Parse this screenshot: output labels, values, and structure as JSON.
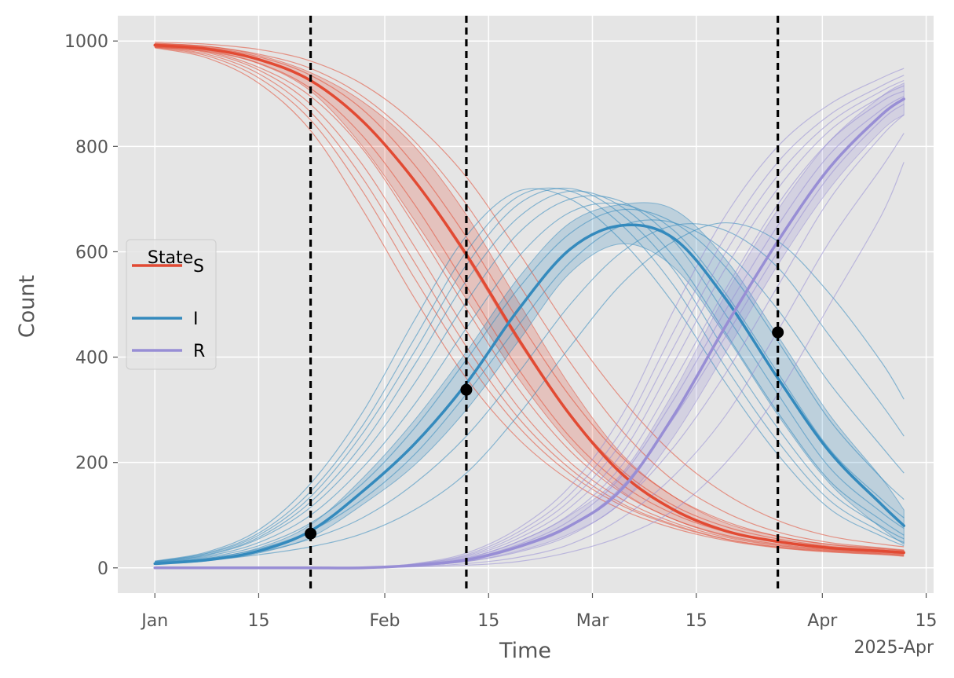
{
  "chart_data": {
    "type": "line",
    "title": "",
    "xlabel": "Time",
    "ylabel": "Count",
    "x_offset_label": "2025-Apr",
    "x_axis": {
      "type": "date",
      "range": [
        "2024-12-27",
        "2025-04-16"
      ],
      "ticks": [
        {
          "date": "2025-01-01",
          "label": "Jan"
        },
        {
          "date": "2025-01-15",
          "label": "15"
        },
        {
          "date": "2025-02-01",
          "label": "Feb"
        },
        {
          "date": "2025-02-15",
          "label": "15"
        },
        {
          "date": "2025-03-01",
          "label": "Mar"
        },
        {
          "date": "2025-03-15",
          "label": "15"
        },
        {
          "date": "2025-04-01",
          "label": "Apr"
        },
        {
          "date": "2025-04-15",
          "label": "15"
        }
      ]
    },
    "y_axis": {
      "range": [
        -48,
        1048
      ],
      "ticks": [
        0,
        200,
        400,
        600,
        800,
        1000
      ]
    },
    "grid": true,
    "legend": {
      "title": "State",
      "placement": "center-left",
      "entries": [
        "S",
        "I",
        "R"
      ]
    },
    "colors": {
      "S": "#E24A33",
      "I": "#348ABD",
      "R": "#988ED5",
      "marker": "#000000",
      "vline": "#000000",
      "background": "#E5E5E5",
      "grid": "#FFFFFF"
    },
    "dates": [
      "2025-01-01",
      "2025-01-08",
      "2025-01-15",
      "2025-01-22",
      "2025-01-29",
      "2025-02-05",
      "2025-02-12",
      "2025-02-19",
      "2025-02-26",
      "2025-03-05",
      "2025-03-12",
      "2025-03-19",
      "2025-03-26",
      "2025-04-02",
      "2025-04-09",
      "2025-04-12"
    ],
    "series": [
      {
        "name": "S",
        "mean": [
          992,
          985,
          965,
          925,
          848,
          735,
          595,
          435,
          290,
          178,
          110,
          70,
          50,
          38,
          32,
          29
        ],
        "lower": [
          988,
          980,
          957,
          905,
          800,
          660,
          510,
          360,
          235,
          145,
          92,
          60,
          43,
          34,
          29,
          26
        ],
        "upper": [
          996,
          990,
          973,
          940,
          885,
          800,
          670,
          505,
          345,
          215,
          135,
          85,
          60,
          45,
          37,
          33
        ],
        "runs": [
          [
            998,
            994,
            984,
            962,
            918,
            845,
            742,
            600,
            450,
            320,
            215,
            140,
            90,
            60,
            45,
            40
          ],
          [
            995,
            990,
            975,
            948,
            895,
            810,
            690,
            540,
            390,
            260,
            165,
            105,
            68,
            48,
            38,
            34
          ],
          [
            994,
            988,
            970,
            935,
            870,
            765,
            628,
            470,
            325,
            210,
            135,
            88,
            60,
            44,
            36,
            32
          ],
          [
            993,
            985,
            965,
            925,
            850,
            735,
            590,
            430,
            290,
            185,
            118,
            78,
            55,
            41,
            34,
            30
          ],
          [
            991,
            982,
            958,
            910,
            820,
            690,
            535,
            378,
            248,
            158,
            102,
            68,
            48,
            37,
            31,
            28
          ],
          [
            990,
            980,
            950,
            895,
            795,
            650,
            492,
            340,
            222,
            142,
            92,
            62,
            45,
            35,
            30,
            27
          ],
          [
            990,
            978,
            945,
            880,
            765,
            610,
            450,
            305,
            200,
            130,
            86,
            58,
            42,
            33,
            28,
            25
          ],
          [
            989,
            975,
            938,
            865,
            740,
            580,
            420,
            285,
            188,
            122,
            82,
            55,
            40,
            32,
            27,
            24
          ],
          [
            988,
            972,
            930,
            850,
            715,
            550,
            395,
            268,
            178,
            118,
            80,
            54,
            39,
            31,
            26,
            23
          ],
          [
            987,
            968,
            920,
            830,
            680,
            512,
            360,
            245,
            165,
            110,
            75,
            52,
            38,
            30,
            25,
            22
          ]
        ]
      },
      {
        "name": "I",
        "mean": [
          8,
          15,
          32,
          70,
          145,
          235,
          350,
          490,
          605,
          650,
          625,
          510,
          360,
          220,
          120,
          80
        ],
        "lower": [
          7,
          13,
          28,
          58,
          120,
          195,
          300,
          430,
          560,
          615,
          570,
          440,
          290,
          160,
          75,
          45
        ],
        "upper": [
          10,
          18,
          38,
          82,
          170,
          280,
          410,
          550,
          655,
          690,
          680,
          585,
          440,
          290,
          170,
          110
        ],
        "runs": [
          [
            8,
            14,
            25,
            40,
            65,
            110,
            180,
            290,
            420,
            540,
            620,
            655,
            620,
            520,
            390,
            320
          ],
          [
            9,
            16,
            30,
            55,
            95,
            160,
            250,
            370,
            500,
            600,
            650,
            640,
            570,
            440,
            310,
            250
          ],
          [
            9,
            18,
            36,
            70,
            130,
            215,
            330,
            460,
            580,
            650,
            655,
            600,
            490,
            350,
            230,
            180
          ],
          [
            10,
            20,
            42,
            85,
            160,
            265,
            395,
            530,
            635,
            680,
            655,
            570,
            430,
            280,
            170,
            130
          ],
          [
            10,
            22,
            48,
            100,
            190,
            310,
            455,
            590,
            675,
            690,
            640,
            520,
            370,
            225,
            130,
            95
          ],
          [
            11,
            24,
            55,
            115,
            215,
            350,
            505,
            635,
            700,
            695,
            620,
            480,
            330,
            190,
            105,
            75
          ],
          [
            11,
            25,
            58,
            125,
            235,
            385,
            545,
            665,
            715,
            685,
            590,
            445,
            295,
            165,
            90,
            62
          ],
          [
            12,
            27,
            62,
            135,
            255,
            410,
            575,
            690,
            720,
            670,
            565,
            410,
            265,
            145,
            78,
            55
          ],
          [
            12,
            28,
            66,
            145,
            270,
            435,
            600,
            705,
            715,
            650,
            535,
            380,
            240,
            128,
            68,
            48
          ],
          [
            13,
            30,
            72,
            160,
            295,
            470,
            630,
            715,
            700,
            620,
            500,
            350,
            215,
            112,
            60,
            42
          ]
        ]
      },
      {
        "name": "R",
        "mean": [
          0,
          0,
          0,
          0,
          0,
          5,
          15,
          40,
          80,
          150,
          290,
          460,
          620,
          760,
          860,
          890
        ],
        "lower": [
          0,
          0,
          0,
          0,
          0,
          4,
          12,
          32,
          65,
          125,
          250,
          410,
          575,
          720,
          830,
          860
        ],
        "upper": [
          0,
          0,
          0,
          0,
          0,
          6,
          18,
          50,
          100,
          180,
          335,
          520,
          680,
          810,
          895,
          920
        ],
        "runs": [
          [
            0,
            0,
            0,
            0,
            0,
            2,
            5,
            12,
            30,
            60,
            110,
            200,
            330,
            500,
            670,
            770
          ],
          [
            0,
            0,
            0,
            0,
            0,
            3,
            8,
            20,
            45,
            95,
            175,
            290,
            450,
            620,
            760,
            825
          ],
          [
            0,
            0,
            0,
            0,
            0,
            4,
            12,
            30,
            62,
            125,
            230,
            370,
            535,
            700,
            820,
            860
          ],
          [
            0,
            0,
            0,
            0,
            0,
            5,
            15,
            38,
            78,
            155,
            285,
            440,
            600,
            745,
            850,
            880
          ],
          [
            0,
            0,
            0,
            0,
            0,
            5,
            17,
            44,
            90,
            175,
            320,
            490,
            650,
            785,
            870,
            895
          ],
          [
            0,
            0,
            0,
            0,
            0,
            6,
            19,
            50,
            102,
            195,
            355,
            530,
            690,
            810,
            885,
            905
          ],
          [
            0,
            0,
            0,
            0,
            0,
            6,
            21,
            56,
            115,
            218,
            390,
            570,
            720,
            830,
            895,
            915
          ],
          [
            0,
            0,
            0,
            0,
            0,
            7,
            23,
            62,
            128,
            240,
            420,
            600,
            745,
            845,
            905,
            925
          ],
          [
            0,
            0,
            0,
            0,
            0,
            7,
            25,
            68,
            140,
            262,
            450,
            630,
            770,
            860,
            915,
            935
          ],
          [
            0,
            0,
            0,
            0,
            0,
            8,
            28,
            75,
            155,
            290,
            490,
            670,
            800,
            880,
            930,
            948
          ]
        ]
      }
    ],
    "vlines": [
      "2025-01-22",
      "2025-02-12",
      "2025-03-26"
    ],
    "markers": [
      {
        "date": "2025-01-22",
        "value": 65
      },
      {
        "date": "2025-02-12",
        "value": 338
      },
      {
        "date": "2025-03-26",
        "value": 447
      }
    ]
  }
}
